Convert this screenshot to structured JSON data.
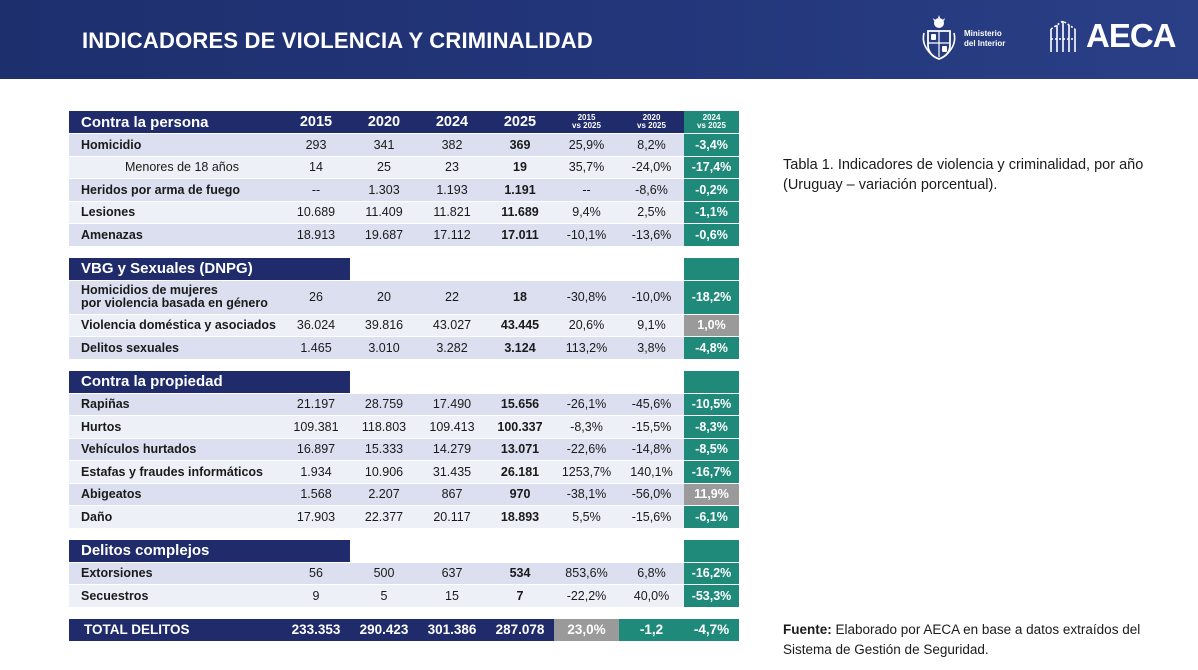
{
  "header": {
    "title": "INDICADORES DE VIOLENCIA Y CRIMINALIDAD",
    "ministerio_line1": "Ministerio",
    "ministerio_line2": "del Interior",
    "aeca": "AECA"
  },
  "table": {
    "header": {
      "label": "Contra la persona",
      "years": [
        "2015",
        "2020",
        "2024",
        "2025"
      ],
      "pct_top": [
        "2015",
        "2020",
        "2024"
      ],
      "pct_bottom": [
        "vs 2025",
        "vs 2025",
        "vs 2025"
      ]
    },
    "persona": [
      {
        "name": "Homicidio",
        "v": [
          "293",
          "341",
          "382",
          "369"
        ],
        "p": [
          "25,9%",
          "8,2%",
          "-3,4%"
        ]
      },
      {
        "name": "Menores de 18 años",
        "v": [
          "14",
          "25",
          "23",
          "19"
        ],
        "p": [
          "35,7%",
          "-24,0%",
          "-17,4%"
        ]
      },
      {
        "name": "Heridos por arma de fuego",
        "v": [
          "--",
          "1.303",
          "1.193",
          "1.191"
        ],
        "p": [
          "--",
          "-8,6%",
          "-0,2%"
        ]
      },
      {
        "name": "Lesiones",
        "v": [
          "10.689",
          "11.409",
          "11.821",
          "11.689"
        ],
        "p": [
          "9,4%",
          "2,5%",
          "-1,1%"
        ]
      },
      {
        "name": "Amenazas",
        "v": [
          "18.913",
          "19.687",
          "17.112",
          "17.011"
        ],
        "p": [
          "-10,1%",
          "-13,6%",
          "-0,6%"
        ]
      }
    ],
    "vbg_label": "VBG y Sexuales (DNPG)",
    "vbg": [
      {
        "name1": "Homicidios de mujeres",
        "name2": "por violencia basada en género",
        "v": [
          "26",
          "20",
          "22",
          "18"
        ],
        "p": [
          "-30,8%",
          "-10,0%",
          "-18,2%"
        ]
      },
      {
        "name": "Violencia doméstica y asociados",
        "v": [
          "36.024",
          "39.816",
          "43.027",
          "43.445"
        ],
        "p": [
          "20,6%",
          "9,1%",
          "1,0%"
        ]
      },
      {
        "name": "Delitos sexuales",
        "v": [
          "1.465",
          "3.010",
          "3.282",
          "3.124"
        ],
        "p": [
          "113,2%",
          "3,8%",
          "-4,8%"
        ]
      }
    ],
    "propiedad_label": "Contra la propiedad",
    "propiedad": [
      {
        "name": "Rapiñas",
        "v": [
          "21.197",
          "28.759",
          "17.490",
          "15.656"
        ],
        "p": [
          "-26,1%",
          "-45,6%",
          "-10,5%"
        ]
      },
      {
        "name": "Hurtos",
        "v": [
          "109.381",
          "118.803",
          "109.413",
          "100.337"
        ],
        "p": [
          "-8,3%",
          "-15,5%",
          "-8,3%"
        ]
      },
      {
        "name": "Vehículos hurtados",
        "v": [
          "16.897",
          "15.333",
          "14.279",
          "13.071"
        ],
        "p": [
          "-22,6%",
          "-14,8%",
          "-8,5%"
        ]
      },
      {
        "name": "Estafas y fraudes informáticos",
        "v": [
          "1.934",
          "10.906",
          "31.435",
          "26.181"
        ],
        "p": [
          "1253,7%",
          "140,1%",
          "-16,7%"
        ]
      },
      {
        "name": "Abigeatos",
        "v": [
          "1.568",
          "2.207",
          "867",
          "970"
        ],
        "p": [
          "-38,1%",
          "-56,0%",
          "11,9%"
        ]
      },
      {
        "name": "Daño",
        "v": [
          "17.903",
          "22.377",
          "20.117",
          "18.893"
        ],
        "p": [
          "5,5%",
          "-15,6%",
          "-6,1%"
        ]
      }
    ],
    "complejos_label": "Delitos complejos",
    "complejos": [
      {
        "name": "Extorsiones",
        "v": [
          "56",
          "500",
          "637",
          "534"
        ],
        "p": [
          "853,6%",
          "6,8%",
          "-16,2%"
        ]
      },
      {
        "name": "Secuestros",
        "v": [
          "9",
          "5",
          "15",
          "7"
        ],
        "p": [
          "-22,2%",
          "40,0%",
          "-53,3%"
        ]
      }
    ],
    "total": {
      "name": "TOTAL DELITOS",
      "v": [
        "233.353",
        "290.423",
        "301.386",
        "287.078"
      ],
      "p": [
        "23,0%",
        "-1,2",
        "-4,7%"
      ]
    }
  },
  "caption": "Tabla 1. Indicadores de violencia y criminalidad, por año (Uruguay – variación porcentual).",
  "source": {
    "label": "Fuente:",
    "text": " Elaborado por AECA en base a datos extraídos del Sistema de Gestión de Seguridad."
  },
  "colors": {
    "navy": "#1f2b6a",
    "teal": "#1f8a7a",
    "grey": "#9a9a9a",
    "row_a": "#dcdff0",
    "row_b": "#eef0f7"
  }
}
